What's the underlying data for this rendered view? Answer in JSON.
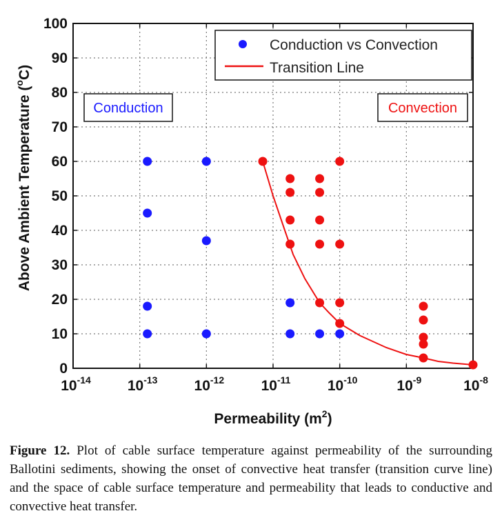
{
  "chart_data": {
    "type": "scatter",
    "xlabel": "Permeability (m",
    "xlabel_sup": "2",
    "xlabel_end": ")",
    "ylabel": "Above Ambient Temperature (",
    "ylabel_sup": "o",
    "ylabel_end": "C)",
    "xscale": "log",
    "xlim": [
      1e-14,
      1e-08
    ],
    "ylim": [
      0,
      100
    ],
    "x_ticks": [
      {
        "base": "10",
        "exp": "-14",
        "value": 1e-14
      },
      {
        "base": "10",
        "exp": "-13",
        "value": 1e-13
      },
      {
        "base": "10",
        "exp": "-12",
        "value": 1e-12
      },
      {
        "base": "10",
        "exp": "-11",
        "value": 1e-11
      },
      {
        "base": "10",
        "exp": "-10",
        "value": 1e-10
      },
      {
        "base": "10",
        "exp": "-9",
        "value": 1e-09
      },
      {
        "base": "10",
        "exp": "-8",
        "value": 1e-08
      }
    ],
    "y_ticks": [
      0,
      10,
      20,
      30,
      40,
      50,
      60,
      70,
      80,
      90,
      100
    ],
    "grid": true,
    "legend_position": "top-right",
    "series": [
      {
        "name": "Conduction vs Convection",
        "marker": "circle",
        "points": [
          {
            "x": 1.3e-13,
            "y": 60,
            "color": "#1a1aff"
          },
          {
            "x": 1.3e-13,
            "y": 45,
            "color": "#1a1aff"
          },
          {
            "x": 1.3e-13,
            "y": 18,
            "color": "#1a1aff"
          },
          {
            "x": 1.3e-13,
            "y": 10,
            "color": "#1a1aff"
          },
          {
            "x": 1e-12,
            "y": 60,
            "color": "#1a1aff"
          },
          {
            "x": 1e-12,
            "y": 37,
            "color": "#1a1aff"
          },
          {
            "x": 1e-12,
            "y": 10,
            "color": "#1a1aff"
          },
          {
            "x": 1.8e-11,
            "y": 19,
            "color": "#1a1aff"
          },
          {
            "x": 1.8e-11,
            "y": 10,
            "color": "#1a1aff"
          },
          {
            "x": 5e-11,
            "y": 10,
            "color": "#1a1aff"
          },
          {
            "x": 1e-10,
            "y": 10,
            "color": "#1a1aff"
          },
          {
            "x": 7e-12,
            "y": 60,
            "color": "#ee1111"
          },
          {
            "x": 1.8e-11,
            "y": 55,
            "color": "#ee1111"
          },
          {
            "x": 1.8e-11,
            "y": 51,
            "color": "#ee1111"
          },
          {
            "x": 1.8e-11,
            "y": 43,
            "color": "#ee1111"
          },
          {
            "x": 1.8e-11,
            "y": 36,
            "color": "#ee1111"
          },
          {
            "x": 5e-11,
            "y": 55,
            "color": "#ee1111"
          },
          {
            "x": 5e-11,
            "y": 51,
            "color": "#ee1111"
          },
          {
            "x": 5e-11,
            "y": 43,
            "color": "#ee1111"
          },
          {
            "x": 5e-11,
            "y": 36,
            "color": "#ee1111"
          },
          {
            "x": 5e-11,
            "y": 19,
            "color": "#ee1111"
          },
          {
            "x": 1e-10,
            "y": 60,
            "color": "#ee1111"
          },
          {
            "x": 1e-10,
            "y": 36,
            "color": "#ee1111"
          },
          {
            "x": 1e-10,
            "y": 19,
            "color": "#ee1111"
          },
          {
            "x": 1e-10,
            "y": 13,
            "color": "#ee1111"
          },
          {
            "x": 1.8e-09,
            "y": 18,
            "color": "#ee1111"
          },
          {
            "x": 1.8e-09,
            "y": 14,
            "color": "#ee1111"
          },
          {
            "x": 1.8e-09,
            "y": 9,
            "color": "#ee1111"
          },
          {
            "x": 1.8e-09,
            "y": 7,
            "color": "#ee1111"
          },
          {
            "x": 1.8e-09,
            "y": 3,
            "color": "#ee1111"
          },
          {
            "x": 1e-08,
            "y": 1,
            "color": "#ee1111"
          }
        ]
      },
      {
        "name": "Transition Line",
        "type": "line",
        "color": "#ee1111",
        "points": [
          {
            "x": 7e-12,
            "y": 60
          },
          {
            "x": 1e-11,
            "y": 50
          },
          {
            "x": 1.5e-11,
            "y": 40
          },
          {
            "x": 2e-11,
            "y": 33
          },
          {
            "x": 3e-11,
            "y": 26
          },
          {
            "x": 5e-11,
            "y": 19
          },
          {
            "x": 7e-11,
            "y": 16
          },
          {
            "x": 1e-10,
            "y": 13
          },
          {
            "x": 2e-10,
            "y": 9.5
          },
          {
            "x": 5e-10,
            "y": 6
          },
          {
            "x": 1e-09,
            "y": 4
          },
          {
            "x": 1.8e-09,
            "y": 3
          },
          {
            "x": 3e-09,
            "y": 2
          },
          {
            "x": 5e-09,
            "y": 1.5
          },
          {
            "x": 1e-08,
            "y": 1
          }
        ]
      }
    ],
    "legend": [
      {
        "label": "Conduction vs Convection",
        "symbol": "dot",
        "color": "#1a1aff"
      },
      {
        "label": "Transition Line",
        "symbol": "line",
        "color": "#ee1111"
      }
    ],
    "annotations": [
      {
        "text": "Conduction",
        "color": "#1a1aff",
        "position": "left"
      },
      {
        "text": "Convection",
        "color": "#ee1111",
        "position": "right"
      }
    ]
  },
  "caption": {
    "label": "Figure 12.",
    "text": " Plot of cable surface temperature against permeability of the surrounding Ballotini sediments, showing the onset of convective heat transfer (transition curve line) and the space of cable surface temperature and permeability that leads to conductive and convective heat transfer."
  }
}
